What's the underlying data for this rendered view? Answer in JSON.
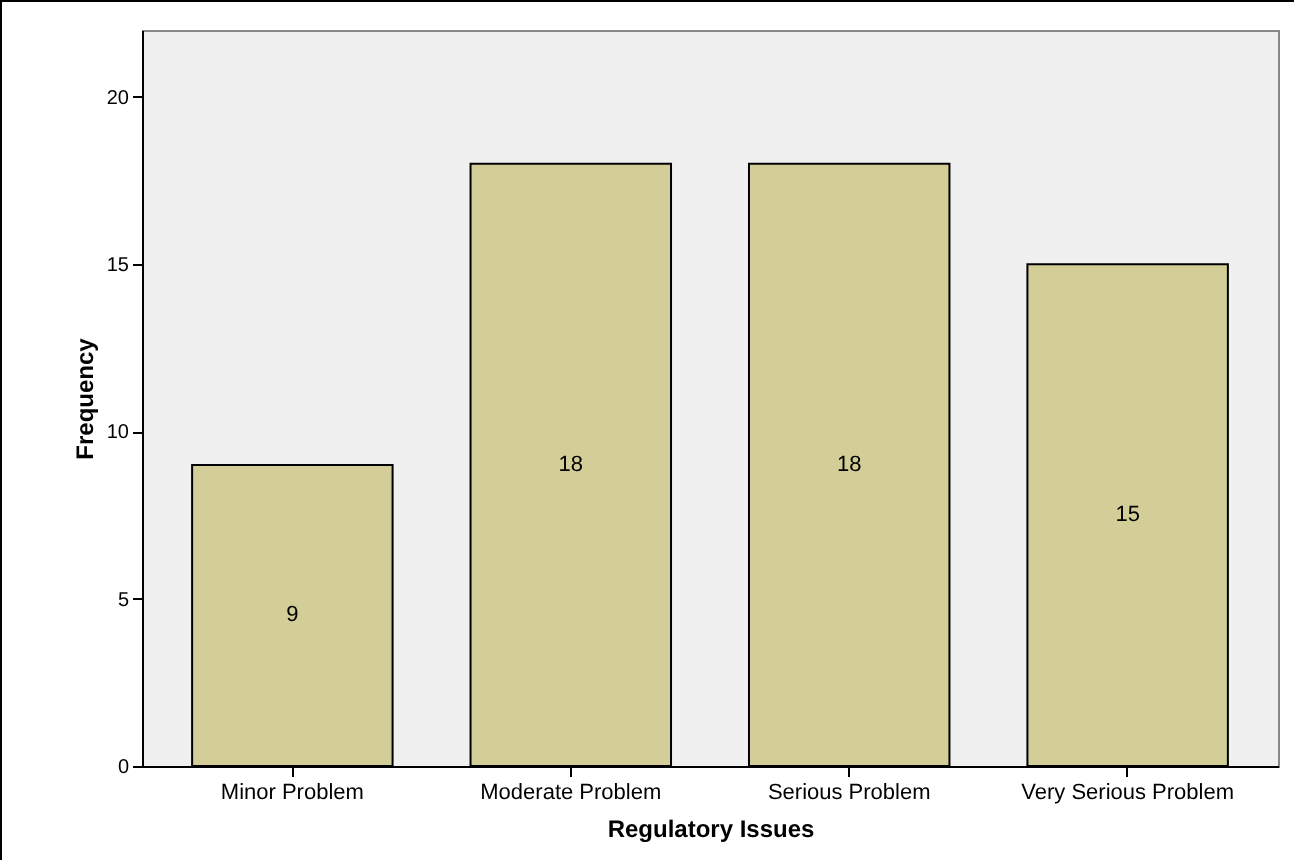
{
  "chart_data": {
    "type": "bar",
    "xlabel": "Regulatory Issues",
    "ylabel": "Frequency",
    "categories": [
      "Minor Problem",
      "Moderate Problem",
      "Serious Problem",
      "Very Serious Problem"
    ],
    "values": [
      9,
      18,
      18,
      15
    ],
    "color": "#d3ce97",
    "ylim": [
      0,
      22
    ],
    "yticks": [
      0,
      5,
      10,
      15,
      20
    ],
    "grid": false,
    "data_labels": true
  }
}
